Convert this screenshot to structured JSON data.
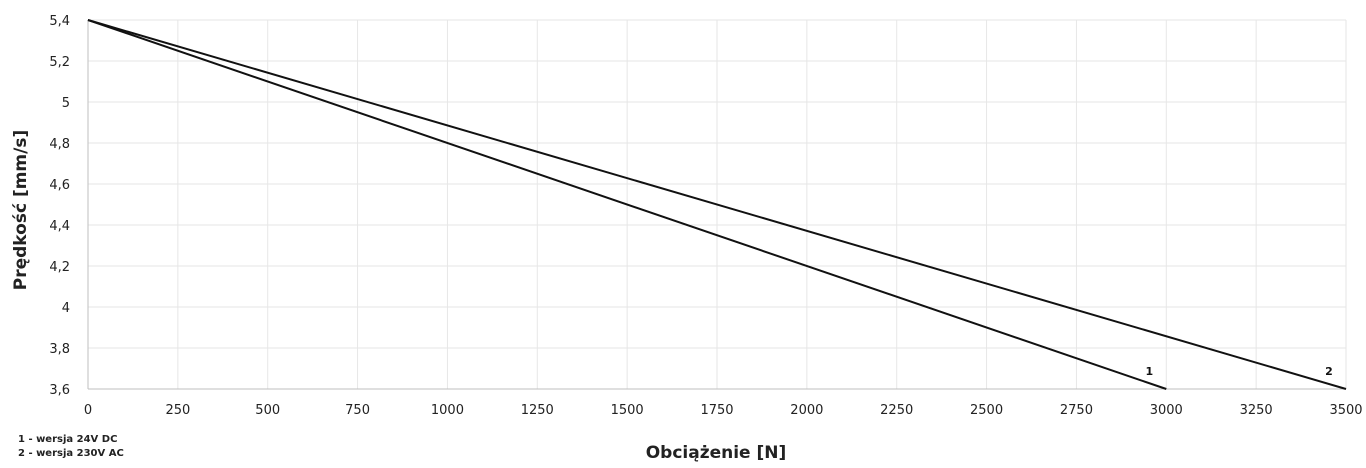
{
  "chart_data": {
    "type": "line",
    "xlabel": "Obciążenie [N]",
    "ylabel": "Prędkość [mm/s]",
    "xlim": [
      0,
      3500
    ],
    "ylim": [
      3.6,
      5.4
    ],
    "x_ticks": [
      "0",
      "250",
      "500",
      "750",
      "1000",
      "1250",
      "1500",
      "1750",
      "2000",
      "2250",
      "2500",
      "2750",
      "3000",
      "3250",
      "3500"
    ],
    "y_ticks": [
      "3,6",
      "3,8",
      "4",
      "4,2",
      "4,4",
      "4,6",
      "4,8",
      "5",
      "5,2",
      "5,4"
    ],
    "grid": true,
    "series": [
      {
        "name": "1",
        "x": [
          0,
          3000
        ],
        "y": [
          5.4,
          3.6
        ]
      },
      {
        "name": "2",
        "x": [
          0,
          3500
        ],
        "y": [
          5.4,
          3.6
        ]
      }
    ],
    "legend_notes": [
      "1 - wersja 24V DC",
      "2 - wersja 230V AC"
    ]
  },
  "colors": {
    "line": "#111111",
    "grid": "#e6e6e6",
    "axis": "#bfbfbf"
  }
}
